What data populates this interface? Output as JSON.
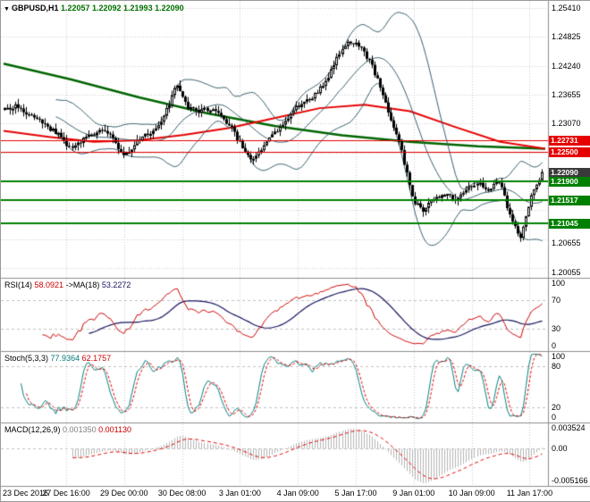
{
  "header": {
    "dropdown_icon": "▼",
    "symbol": "GBPUSD,H1",
    "ohlc": "1.22057 1.22092 1.21993 1.22090"
  },
  "chart_data": {
    "type": "candlestick",
    "title": "GBPUSD H1 chart with Bollinger Bands, moving averages, support/resistance levels, RSI, Stochastic and MACD",
    "x_labels": [
      "23 Dec 2016",
      "27 Dec 16:00",
      "29 Dec 00:00",
      "30 Dec 08:00",
      "3 Jan 01:00",
      "4 Jan 09:00",
      "5 Jan 17:00",
      "9 Jan 01:00",
      "10 Jan 09:00",
      "11 Jan 17:00"
    ],
    "price_panel": {
      "ylim": [
        1.1995,
        1.2555
      ],
      "grid_start": 1.2541,
      "grid_step": 0.00585,
      "axis_labels": [
        "1.25410",
        "1.24825",
        "1.24240",
        "1.23655",
        "1.23070",
        "1.20655",
        "1.20055"
      ],
      "bars": 200,
      "noise": 0.0016,
      "seed": 97,
      "anchors": [
        1.2335,
        1.2343,
        1.233,
        1.2317,
        1.23,
        1.2287,
        1.2256,
        1.227,
        1.2284,
        1.2296,
        1.2281,
        1.2237,
        1.2262,
        1.2284,
        1.2294,
        1.233,
        1.2385,
        1.2341,
        1.2333,
        1.2336,
        1.2325,
        1.23,
        1.2262,
        1.2232,
        1.2257,
        1.2285,
        1.2305,
        1.2338,
        1.235,
        1.2368,
        1.2395,
        1.2445,
        1.2475,
        1.2462,
        1.243,
        1.238,
        1.231,
        1.2245,
        1.2152,
        1.2131,
        1.2156,
        1.2165,
        1.2151,
        1.2178,
        1.2186,
        1.2172,
        1.2192,
        1.212,
        1.2073,
        1.2158,
        1.2209
      ],
      "bollinger": {
        "period": 20,
        "deviation": 2,
        "color": "#355e6b"
      },
      "ma_red": {
        "color": "#e60000",
        "points": [
          1.2292,
          1.228,
          1.227,
          1.2273,
          1.2284,
          1.2298,
          1.2318,
          1.2338,
          1.2345,
          1.2332,
          1.23,
          1.227,
          1.2256
        ]
      },
      "ma_green": {
        "color": "#006400",
        "points": [
          1.2428,
          1.2396,
          1.236,
          1.2328,
          1.2302,
          1.2283,
          1.227,
          1.2261,
          1.2256
        ]
      },
      "levels": [
        {
          "value": 1.22731,
          "color": "#e60000",
          "width": 1
        },
        {
          "value": 1.225,
          "color": "#e60000",
          "width": 1
        },
        {
          "value": 1.219,
          "color": "#008000",
          "width": 2
        },
        {
          "value": 1.21517,
          "color": "#008000",
          "width": 2
        },
        {
          "value": 1.21045,
          "color": "#008000",
          "width": 2
        }
      ],
      "tags": [
        {
          "label": "1.22731",
          "value": 1.22731,
          "bg": "#e60000"
        },
        {
          "label": "1.22500",
          "value": 1.225,
          "bg": "#e60000"
        },
        {
          "label": "1.22090",
          "value": 1.2209,
          "bg": "#3a3a3a"
        },
        {
          "label": "1.21900",
          "value": 1.219,
          "bg": "#008000"
        },
        {
          "label": "1.21517",
          "value": 1.21517,
          "bg": "#008000"
        },
        {
          "label": "1.21045",
          "value": 1.21045,
          "bg": "#008000"
        }
      ]
    },
    "rsi_panel": {
      "label": "RSI(14)",
      "value": "58.0921",
      "ma_label": "->MA(18)",
      "ma_value": "53.2272",
      "period": 14,
      "ma_period": 18,
      "axis_labels": [
        "100",
        "70",
        "30",
        "0"
      ],
      "levels": [
        70,
        30
      ],
      "color": "#cc0000",
      "ma_color": "#14145e"
    },
    "stoch_panel": {
      "label": "Stoch(5,3,3)",
      "value": "77.9364",
      "value2": "62.1757",
      "axis_labels": [
        "100",
        "80",
        "20",
        "0"
      ],
      "levels": [
        80,
        20
      ],
      "k_color": "#008080",
      "d_color": "#e60000"
    },
    "macd_panel": {
      "label": "MACD(12,26,9)",
      "value": "0.001350",
      "value2": "0.001130",
      "ylim": [
        -0.005166,
        0.003524
      ],
      "axis_labels": [
        "0.003524",
        "0.00",
        "-0.005166"
      ],
      "hist_color": "#b4b4b4",
      "signal_color": "#e60000"
    },
    "colors": {
      "background": "#ffffff",
      "grid": "#c9c9c9",
      "separator": "#8c8c8c",
      "level_dash": "#c0c0c0"
    }
  }
}
